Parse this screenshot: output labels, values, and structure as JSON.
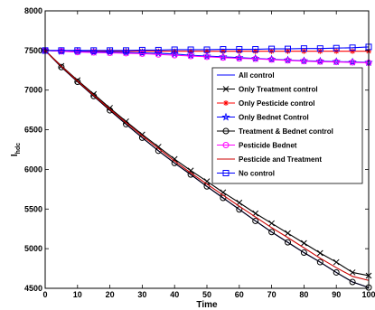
{
  "chart_data": {
    "type": "line",
    "xlabel": "Time",
    "ylabel": "I",
    "ylabel_sub": "hdc",
    "xlim": [
      0,
      100
    ],
    "ylim": [
      4500,
      8000
    ],
    "xticks": [
      "0",
      "10",
      "20",
      "30",
      "40",
      "50",
      "60",
      "70",
      "80",
      "90",
      "100"
    ],
    "yticks": [
      "4500",
      "5000",
      "5500",
      "6000",
      "6500",
      "7000",
      "7500",
      "8000"
    ],
    "grid": false,
    "legend_position": "right",
    "x": [
      0,
      5,
      10,
      15,
      20,
      25,
      30,
      35,
      40,
      45,
      50,
      55,
      60,
      65,
      70,
      75,
      80,
      85,
      90,
      95,
      100
    ],
    "series": [
      {
        "name": "All control",
        "color": "#0000ff",
        "marker": "none",
        "values": [
          7500,
          7290,
          7105,
          6925,
          6745,
          6570,
          6400,
          6235,
          6080,
          5935,
          5785,
          5640,
          5495,
          5350,
          5210,
          5080,
          4950,
          4830,
          4700,
          4580,
          4510
        ]
      },
      {
        "name": "Only Treatment control",
        "color": "#000000",
        "marker": "x",
        "values": [
          7500,
          7305,
          7125,
          6950,
          6775,
          6605,
          6440,
          6285,
          6130,
          5985,
          5850,
          5710,
          5580,
          5445,
          5320,
          5195,
          5070,
          4945,
          4830,
          4700,
          4660
        ]
      },
      {
        "name": "Only Pesticide control",
        "color": "#ff0000",
        "marker": "star",
        "values": [
          7500,
          7495,
          7490,
          7490,
          7490,
          7490,
          7490,
          7490,
          7490,
          7490,
          7490,
          7490,
          7490,
          7490,
          7490,
          7490,
          7490,
          7490,
          7490,
          7490,
          7490
        ]
      },
      {
        "name": "Only Bednet Control",
        "color": "#0000ff",
        "marker": "pentagram",
        "values": [
          7500,
          7490,
          7490,
          7480,
          7480,
          7475,
          7470,
          7465,
          7455,
          7440,
          7430,
          7420,
          7410,
          7400,
          7390,
          7380,
          7370,
          7365,
          7360,
          7355,
          7350
        ]
      },
      {
        "name": "Treatment & Bednet control",
        "color": "#000000",
        "marker": "circle",
        "values": [
          7500,
          7290,
          7105,
          6925,
          6745,
          6570,
          6400,
          6235,
          6080,
          5935,
          5785,
          5640,
          5495,
          5350,
          5210,
          5080,
          4950,
          4830,
          4700,
          4580,
          4510
        ]
      },
      {
        "name": "Pesticide Bednet",
        "color": "#ff00ff",
        "marker": "circle",
        "values": [
          7500,
          7490,
          7480,
          7475,
          7470,
          7465,
          7460,
          7450,
          7440,
          7430,
          7420,
          7410,
          7400,
          7395,
          7385,
          7375,
          7365,
          7360,
          7355,
          7350,
          7345
        ]
      },
      {
        "name": "Pesticide and Treatment",
        "color": "#cc0000",
        "marker": "none",
        "values": [
          7500,
          7300,
          7115,
          6935,
          6760,
          6590,
          6425,
          6265,
          6105,
          5955,
          5815,
          5675,
          5535,
          5400,
          5265,
          5140,
          5010,
          4880,
          4760,
          4650,
          4600
        ]
      },
      {
        "name": "No control",
        "color": "#0000ff",
        "marker": "square",
        "values": [
          7500,
          7500,
          7500,
          7500,
          7500,
          7500,
          7505,
          7505,
          7510,
          7510,
          7510,
          7515,
          7515,
          7515,
          7520,
          7520,
          7525,
          7525,
          7530,
          7535,
          7545
        ]
      }
    ]
  }
}
